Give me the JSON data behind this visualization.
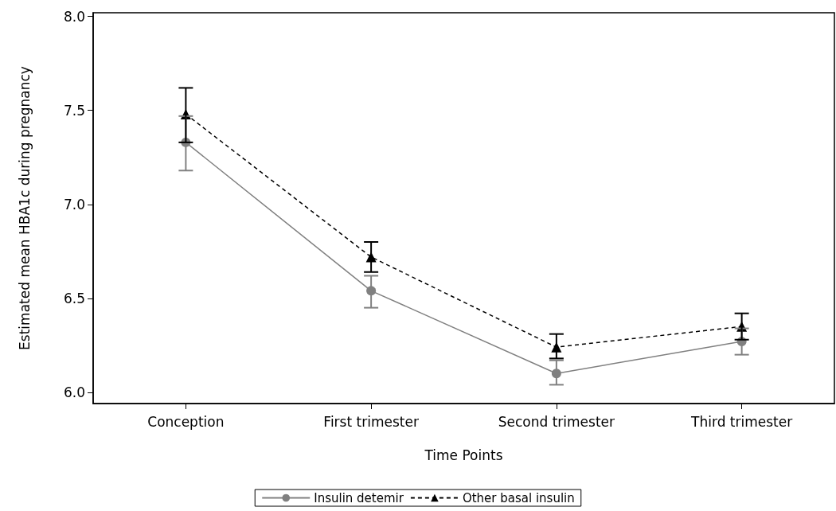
{
  "chart_data": {
    "type": "line",
    "xlabel": "Time Points",
    "ylabel": "Estimated mean HBA1c during pregnancy",
    "categories": [
      "Conception",
      "First trimester",
      "Second trimester",
      "Third trimester"
    ],
    "series": [
      {
        "name": "Insulin detemir",
        "color": "#808080",
        "marker": "circle",
        "line_style": "solid",
        "values": [
          7.33,
          6.54,
          6.1,
          6.27
        ],
        "errors": [
          [
            7.18,
            7.47
          ],
          [
            6.45,
            6.62
          ],
          [
            6.04,
            6.17
          ],
          [
            6.2,
            6.34
          ]
        ]
      },
      {
        "name": "Other basal insulin",
        "color": "#000000",
        "marker": "triangle",
        "line_style": "dashed",
        "values": [
          7.48,
          6.72,
          6.24,
          6.35
        ],
        "errors": [
          [
            7.33,
            7.62
          ],
          [
            6.64,
            6.8
          ],
          [
            6.18,
            6.31
          ],
          [
            6.28,
            6.42
          ]
        ]
      }
    ],
    "ylim": [
      5.94,
      8.02
    ],
    "yticks": [
      {
        "value": 6,
        "label": "6.0"
      },
      {
        "value": 6.5,
        "label": "6.5"
      },
      {
        "value": 7,
        "label": "7.0"
      },
      {
        "value": 7.5,
        "label": "7.5"
      },
      {
        "value": 8,
        "label": "8.0"
      }
    ],
    "grid": false,
    "legend": "bottom"
  }
}
